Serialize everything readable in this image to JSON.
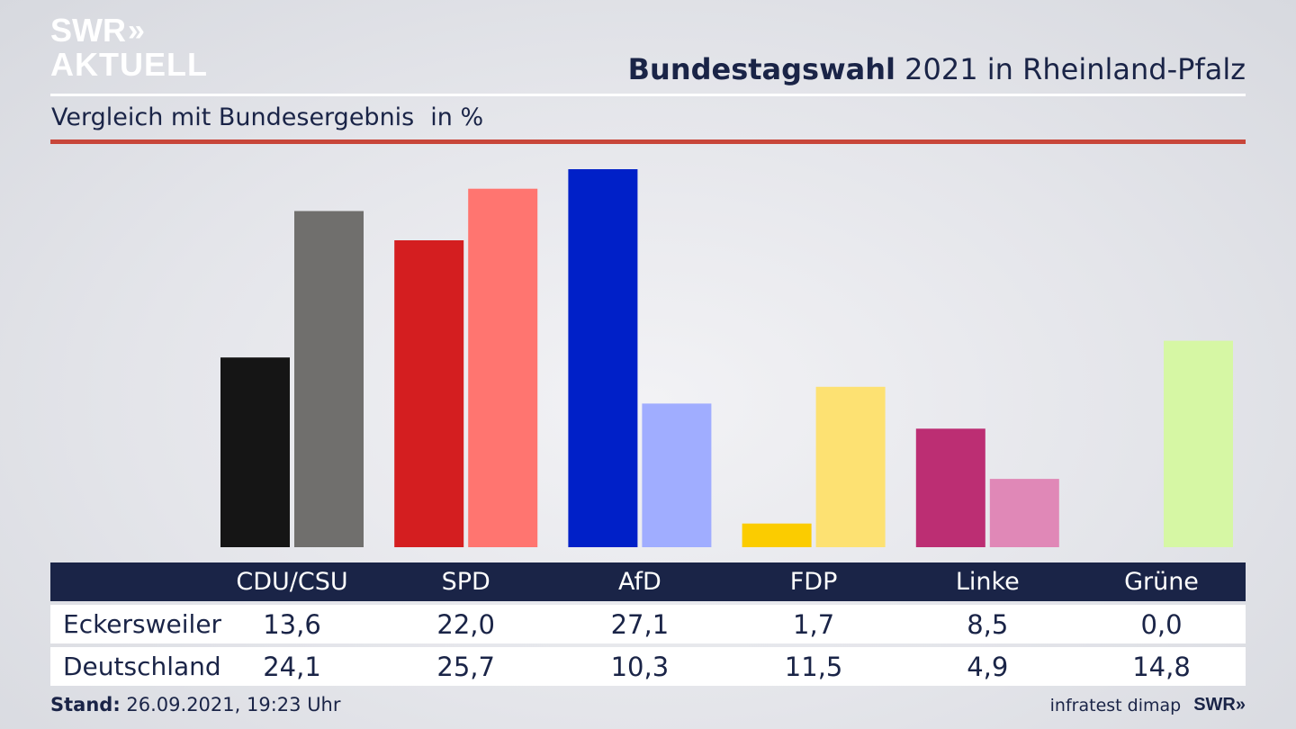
{
  "logo": {
    "line1": "SWR",
    "chevrons": "»",
    "line2": "AKTUELL"
  },
  "header": {
    "title_bold": "Bundestagswahl",
    "title_rest": "2021 in Rheinland-Pfalz",
    "subtitle": "Vergleich mit Bundesergebnis",
    "unit": "in %"
  },
  "colors": {
    "title_navy": "#1a2447",
    "accent_red": "#c8463a",
    "white": "#ffffff"
  },
  "chart_data": {
    "type": "bar",
    "title": "Bundestagswahl 2021 in Rheinland-Pfalz",
    "subtitle": "Vergleich mit Bundesergebnis",
    "unit": "in %",
    "categories": [
      "CDU/CSU",
      "SPD",
      "AfD",
      "FDP",
      "Linke",
      "Grüne"
    ],
    "series": [
      {
        "name": "Eckersweiler",
        "values": [
          13.6,
          22.0,
          27.1,
          1.7,
          8.5,
          0.0
        ],
        "labels": [
          "13,6",
          "22,0",
          "27,1",
          "1,7",
          "8,5",
          "0,0"
        ],
        "colors": [
          "#151515",
          "#d41e20",
          "#0020c8",
          "#fbcc00",
          "#bc2e73",
          "#8cc63f"
        ]
      },
      {
        "name": "Deutschland",
        "values": [
          24.1,
          25.7,
          10.3,
          11.5,
          4.9,
          14.8
        ],
        "labels": [
          "24,1",
          "25,7",
          "10,3",
          "11,5",
          "4,9",
          "14,8"
        ],
        "colors": [
          "#706f6d",
          "#ff7570",
          "#a0adff",
          "#fde172",
          "#e088b7",
          "#d6f7a4"
        ]
      }
    ],
    "ylim": [
      0,
      27.1
    ],
    "grid": false,
    "legend": "none"
  },
  "table": {
    "rows": [
      {
        "label": "Eckersweiler"
      },
      {
        "label": "Deutschland"
      }
    ]
  },
  "footer": {
    "stand_label": "Stand:",
    "stand_value": "26.09.2021, 19:23 Uhr",
    "source": "infratest dimap",
    "brand": "SWR»"
  }
}
